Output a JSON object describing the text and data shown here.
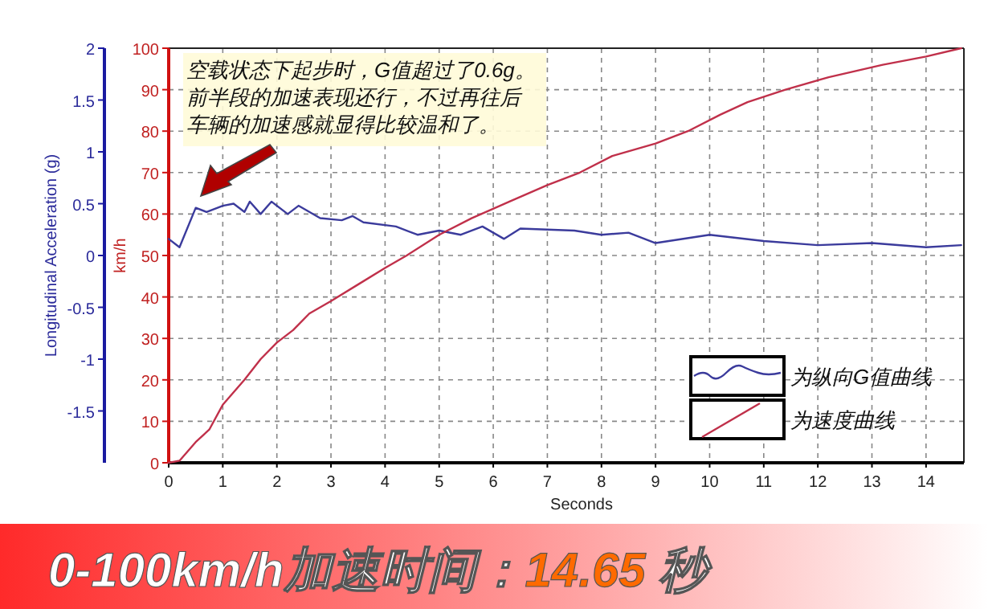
{
  "chart_data": {
    "type": "line",
    "title": "0-100km/h加速时间：14.65 秒",
    "xlabel": "Seconds",
    "ylabel": "km/h",
    "y2label": "Longitudinal Acceleration (g)",
    "annotations": [
      "空载状态下起步时，G值超过了0.6g。前半段的加速表现还行，不过再往后车辆的加速感就显得比较温和了。"
    ],
    "xlim": [
      0,
      14.7
    ],
    "xticks": [
      0,
      1,
      2,
      3,
      4,
      5,
      6,
      7,
      8,
      9,
      10,
      11,
      12,
      13,
      14
    ],
    "ylim": [
      0,
      100
    ],
    "yticks": [
      0,
      10,
      20,
      30,
      40,
      50,
      60,
      70,
      80,
      90,
      100
    ],
    "y2lim": [
      -2,
      2
    ],
    "y2ticks": [
      -1.5,
      -1,
      -0.5,
      0,
      0.5,
      1,
      1.5,
      2
    ],
    "grid": true,
    "legend": "bottom right",
    "line_style": "solid",
    "series": [
      {
        "name": "为纵向G值曲线",
        "color": "#3b3b9c",
        "axis": "y2",
        "x": [
          0,
          0.2,
          0.5,
          0.7,
          1,
          1.2,
          1.4,
          1.5,
          1.7,
          1.9,
          2.2,
          2.4,
          2.8,
          3.2,
          3.4,
          3.6,
          4.2,
          4.6,
          5,
          5.4,
          5.8,
          6.2,
          6.5,
          7.5,
          8,
          8.5,
          9,
          10,
          11,
          12,
          13,
          14,
          14.65
        ],
        "values": [
          0.16,
          0.08,
          0.46,
          0.42,
          0.48,
          0.5,
          0.42,
          0.52,
          0.4,
          0.52,
          0.4,
          0.48,
          0.36,
          0.34,
          0.38,
          0.32,
          0.28,
          0.2,
          0.24,
          0.2,
          0.28,
          0.16,
          0.26,
          0.24,
          0.2,
          0.22,
          0.12,
          0.2,
          0.14,
          0.1,
          0.12,
          0.08,
          0.1
        ]
      },
      {
        "name": "为速度曲线",
        "color": "#c0304a",
        "x": [
          0,
          0.2,
          0.5,
          0.75,
          1,
          1.4,
          1.7,
          2,
          2.3,
          2.6,
          3,
          3.5,
          4,
          4.4,
          5,
          5.6,
          6.3,
          7,
          7.6,
          8.2,
          9,
          9.6,
          10.2,
          10.7,
          11.4,
          12.2,
          13.2,
          14,
          14.65
        ],
        "values": [
          0,
          0.5,
          5,
          8,
          14,
          20,
          25,
          29,
          32,
          36,
          39,
          43,
          47,
          50,
          55,
          59,
          63,
          67,
          70,
          74,
          77,
          80,
          84,
          87,
          90,
          93,
          96,
          98,
          100
        ]
      }
    ]
  }
}
